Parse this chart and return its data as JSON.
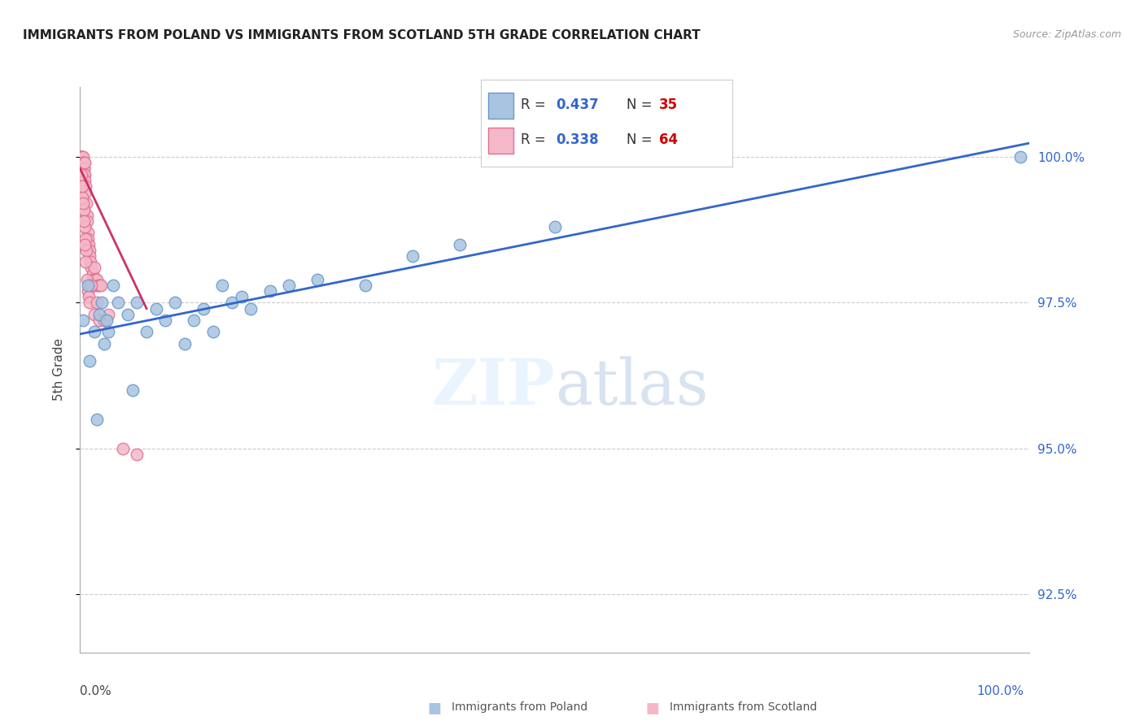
{
  "title": "IMMIGRANTS FROM POLAND VS IMMIGRANTS FROM SCOTLAND 5TH GRADE CORRELATION CHART",
  "source": "Source: ZipAtlas.com",
  "ylabel": "5th Grade",
  "y_ticks": [
    92.5,
    95.0,
    97.5,
    100.0
  ],
  "y_tick_labels": [
    "92.5%",
    "95.0%",
    "97.5%",
    "100.0%"
  ],
  "xlim": [
    0.0,
    100.0
  ],
  "ylim": [
    91.5,
    101.2
  ],
  "poland_color": "#a8c4e0",
  "poland_edge": "#6699cc",
  "scotland_color": "#f4b8c8",
  "scotland_edge": "#e07090",
  "poland_R": 0.437,
  "poland_N": 35,
  "scotland_R": 0.338,
  "scotland_N": 64,
  "poland_line_color": "#3366cc",
  "scotland_line_color": "#cc3366",
  "legend_R_color": "#3366cc",
  "legend_N_color": "#cc0000"
}
